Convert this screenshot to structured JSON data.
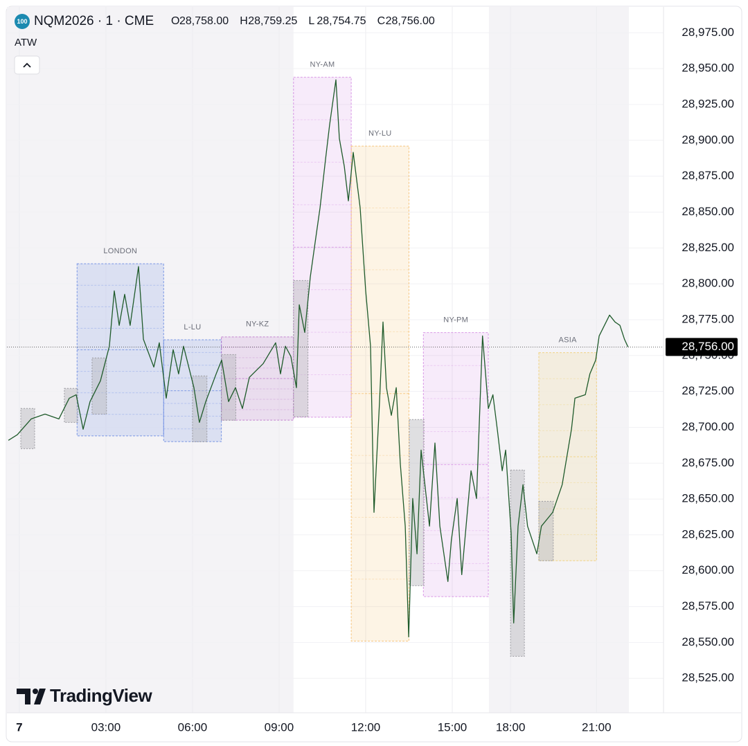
{
  "chart_data": {
    "type": "line",
    "badge": "100",
    "symbol": "NQM2026 · 1 · CME",
    "ohlc": [
      {
        "label": "O",
        "value": "28,758.00"
      },
      {
        "label": "H",
        "value": "28,759.25"
      },
      {
        "label": "L",
        "value": "28,754.75"
      },
      {
        "label": "C",
        "value": "28,756.00"
      }
    ],
    "indicator": "ATW",
    "watermark": "TradingView",
    "color": "#1e5a2a",
    "xlim": [
      -0.43,
      22.32
    ],
    "ylim": [
      28501,
      28993
    ],
    "grid": true,
    "xticks": [
      {
        "value": 0,
        "label": "7"
      },
      {
        "value": 3,
        "label": "03:00"
      },
      {
        "value": 6,
        "label": "06:00"
      },
      {
        "value": 9,
        "label": "09:00"
      },
      {
        "value": 12,
        "label": "12:00"
      },
      {
        "value": 15,
        "label": "15:00"
      },
      {
        "value": 17.02,
        "label": "18:00"
      },
      {
        "value": 20,
        "label": "21:00"
      }
    ],
    "yticks": [
      {
        "value": 28525,
        "label": "28,525.00"
      },
      {
        "value": 28550,
        "label": "28,550.00"
      },
      {
        "value": 28575,
        "label": "28,575.00"
      },
      {
        "value": 28600,
        "label": "28,600.00"
      },
      {
        "value": 28625,
        "label": "28,625.00"
      },
      {
        "value": 28650,
        "label": "28,650.00"
      },
      {
        "value": 28675,
        "label": "28,675.00"
      },
      {
        "value": 28700,
        "label": "28,700.00"
      },
      {
        "value": 28725,
        "label": "28,725.00"
      },
      {
        "value": 28750,
        "label": "28,750.00"
      },
      {
        "value": 28775,
        "label": "28,775.00"
      },
      {
        "value": 28800,
        "label": "28,800.00"
      },
      {
        "value": 28825,
        "label": "28,825.00"
      },
      {
        "value": 28850,
        "label": "28,850.00"
      },
      {
        "value": 28875,
        "label": "28,875.00"
      },
      {
        "value": 28900,
        "label": "28,900.00"
      },
      {
        "value": 28925,
        "label": "28,925.00"
      },
      {
        "value": 28950,
        "label": "28,950.00"
      },
      {
        "value": 28975,
        "label": "28,975.00"
      }
    ],
    "shaded_ranges": [
      [
        -0.43,
        9.5
      ],
      [
        16.27,
        21.12
      ]
    ],
    "last_price": {
      "value": 28756,
      "label": "28,756.00"
    },
    "sessions": [
      {
        "name": "LONDON",
        "start": 2,
        "end": 5,
        "high": 28814,
        "low": 28694,
        "color": "#5b7fe0"
      },
      {
        "name": "L-LU",
        "start": 5,
        "end": 7,
        "high": 28761,
        "low": 28690,
        "color": "#5b7fe0"
      },
      {
        "name": "NY-KZ",
        "start": 7,
        "end": 9.5,
        "high": 28763,
        "low": 28705,
        "color": "#b86ac8"
      },
      {
        "name": "NY-AM",
        "start": 9.5,
        "end": 11.5,
        "high": 28944,
        "low": 28707,
        "color": "#d080e0"
      },
      {
        "name": "NY-LU",
        "start": 11.5,
        "end": 13.5,
        "high": 28896,
        "low": 28551,
        "color": "#f5b860"
      },
      {
        "name": "NY-PM",
        "start": 14,
        "end": 16.25,
        "high": 28766,
        "low": 28582,
        "color": "#d080e0"
      },
      {
        "name": "ASIA",
        "start": 18,
        "end": 20,
        "high": 28752,
        "low": 28607,
        "color": "#f0cc6a"
      }
    ],
    "opening_ranges": [
      {
        "start": 0.05,
        "end": 0.53,
        "high": 28713.1,
        "low": 28685.1
      },
      {
        "start": 1.56,
        "end": 2.02,
        "high": 28727.1,
        "low": 28703.4
      },
      {
        "start": 2.52,
        "end": 3.02,
        "high": 28748.3,
        "low": 28709.2
      },
      {
        "start": 6.0,
        "end": 6.5,
        "high": 28735.8,
        "low": 28689.9
      },
      {
        "start": 7.0,
        "end": 7.5,
        "high": 28750.7,
        "low": 28704.9
      },
      {
        "start": 9.5,
        "end": 10.0,
        "high": 28802.3,
        "low": 28707.3
      },
      {
        "start": 13.51,
        "end": 14.02,
        "high": 28705.4,
        "low": 28589.6
      },
      {
        "start": 17.02,
        "end": 17.5,
        "high": 28670.2,
        "low": 28540.4
      },
      {
        "start": 18.0,
        "end": 18.5,
        "high": 28648.4,
        "low": 28607.0
      }
    ],
    "x": [
      -0.38,
      -0.07,
      0.41,
      0.89,
      1.37,
      1.73,
      1.97,
      2.21,
      2.45,
      2.81,
      3.12,
      3.29,
      3.46,
      3.65,
      3.84,
      4.13,
      4.3,
      4.66,
      4.85,
      5.09,
      5.33,
      5.52,
      5.69,
      6.05,
      6.24,
      6.46,
      6.82,
      7.01,
      7.25,
      7.49,
      7.73,
      7.97,
      8.45,
      8.88,
      9.05,
      9.22,
      9.41,
      9.6,
      9.7,
      9.89,
      10.08,
      10.25,
      10.42,
      10.61,
      10.75,
      10.97,
      11.09,
      11.26,
      11.4,
      11.57,
      11.81,
      12.0,
      12.17,
      12.29,
      12.48,
      12.6,
      12.72,
      12.89,
      13.06,
      13.2,
      13.37,
      13.49,
      13.63,
      13.78,
      13.92,
      14.21,
      14.4,
      14.57,
      14.85,
      14.97,
      15.17,
      15.33,
      15.65,
      15.84,
      16.05,
      16.25,
      16.41,
      16.56,
      16.73,
      16.85,
      17.04,
      17.13,
      17.28,
      17.45,
      17.61,
      17.93,
      18.09,
      18.48,
      18.81,
      19.13,
      19.25,
      19.61,
      19.77,
      19.97,
      20.09,
      20.45,
      20.64,
      20.81,
      20.97,
      21.09
    ],
    "values": [
      28690.9,
      28694.8,
      28705.8,
      28709.2,
      28705.8,
      28720.3,
      28722.7,
      28698.6,
      28717.9,
      28732.4,
      28756.5,
      28795.1,
      28771.0,
      28792.7,
      28771.0,
      28812.0,
      28761.3,
      28742.0,
      28758.9,
      28720.3,
      28754.1,
      28737.2,
      28756.5,
      28727.6,
      28703.4,
      28717.9,
      28737.2,
      28746.8,
      28717.9,
      28727.6,
      28713.1,
      28734.8,
      28744.4,
      28758.9,
      28737.2,
      28756.5,
      28749.3,
      28727.6,
      28785.4,
      28766.1,
      28804.7,
      28828.8,
      28853.0,
      28886.7,
      28910.8,
      28942.2,
      28901.2,
      28881.9,
      28857.8,
      28891.6,
      28853.0,
      28795.1,
      28756.5,
      28640.7,
      28717.9,
      28773.4,
      28727.6,
      28708.3,
      28727.6,
      28674.5,
      28631.1,
      28553.9,
      28650.4,
      28611.8,
      28684.1,
      28631.1,
      28689.0,
      28631.1,
      28592.5,
      28621.4,
      28650.4,
      28597.3,
      28669.7,
      28650.4,
      28763.7,
      28713.1,
      28722.7,
      28698.6,
      28669.7,
      28684.1,
      28626.3,
      28563.6,
      28631.1,
      28660.0,
      28631.1,
      28611.8,
      28631.1,
      28640.7,
      28660.0,
      28698.6,
      28720.3,
      28722.7,
      28737.2,
      28746.8,
      28763.7,
      28778.2,
      28773.4,
      28771.0,
      28761.3,
      28756.0
    ]
  }
}
